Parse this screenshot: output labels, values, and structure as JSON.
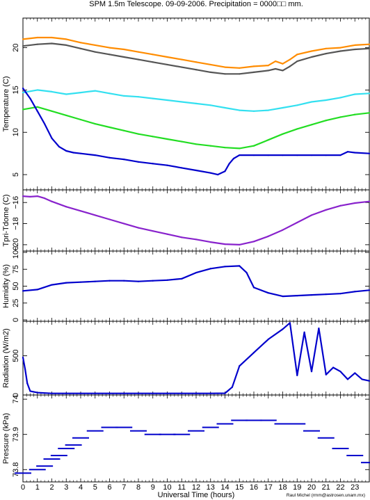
{
  "title": "SPM 1.5m Telescope. 09-09-2006. Precipitation = 0000□□ mm.",
  "xlabel": "Universal Time (hours)",
  "credit": "Raul Michel (rmm@astrosen.unam.mx)",
  "colors": {
    "orange": "#ff8c00",
    "gray": "#555555",
    "cyan": "#33e0f0",
    "green": "#22dd22",
    "blue": "#0000cc",
    "purple": "#8822cc"
  },
  "chart_data": [
    {
      "type": "line",
      "ylabel": "Temperature (C)",
      "ylim": [
        3.2,
        23.5
      ],
      "xlim": [
        0,
        24
      ],
      "yticks": [
        5,
        10,
        15,
        20
      ],
      "series": [
        {
          "color": "orange",
          "x": [
            0,
            1,
            2,
            3,
            4,
            5,
            6,
            7,
            8,
            9,
            10,
            11,
            12,
            13,
            14,
            15,
            16,
            17,
            17.5,
            18,
            18.5,
            19,
            20,
            21,
            22,
            23,
            24
          ],
          "y": [
            21.0,
            21.2,
            21.2,
            21.0,
            20.6,
            20.3,
            20.0,
            19.8,
            19.5,
            19.2,
            18.9,
            18.6,
            18.3,
            18.0,
            17.7,
            17.6,
            17.8,
            17.9,
            18.4,
            18.1,
            18.6,
            19.2,
            19.6,
            19.9,
            20.0,
            20.3,
            20.4
          ]
        },
        {
          "color": "gray",
          "x": [
            0,
            1,
            2,
            3,
            4,
            5,
            6,
            7,
            8,
            9,
            10,
            11,
            12,
            13,
            14,
            15,
            16,
            17,
            17.5,
            18,
            18.5,
            19,
            20,
            21,
            22,
            23,
            24
          ],
          "y": [
            20.2,
            20.4,
            20.5,
            20.3,
            19.9,
            19.5,
            19.2,
            18.9,
            18.6,
            18.3,
            18.0,
            17.7,
            17.4,
            17.1,
            16.9,
            16.9,
            17.1,
            17.3,
            17.5,
            17.3,
            17.8,
            18.4,
            18.9,
            19.3,
            19.6,
            19.8,
            19.9
          ]
        },
        {
          "color": "cyan",
          "x": [
            0,
            1,
            2,
            3,
            4,
            5,
            6,
            7,
            8,
            9,
            10,
            11,
            12,
            13,
            14,
            15,
            16,
            17,
            18,
            19,
            20,
            21,
            22,
            23,
            24
          ],
          "y": [
            14.7,
            15.0,
            14.8,
            14.5,
            14.7,
            14.9,
            14.6,
            14.3,
            14.2,
            14.0,
            13.8,
            13.6,
            13.4,
            13.2,
            12.9,
            12.6,
            12.5,
            12.6,
            12.9,
            13.2,
            13.6,
            13.8,
            14.1,
            14.5,
            14.6
          ]
        },
        {
          "color": "green",
          "x": [
            0,
            1,
            2,
            3,
            4,
            5,
            6,
            7,
            8,
            9,
            10,
            11,
            12,
            13,
            14,
            15,
            16,
            17,
            18,
            19,
            20,
            21,
            22,
            23,
            24
          ],
          "y": [
            12.7,
            13.0,
            12.5,
            12.0,
            11.5,
            11.0,
            10.6,
            10.2,
            9.8,
            9.5,
            9.2,
            8.9,
            8.6,
            8.4,
            8.2,
            8.1,
            8.4,
            9.1,
            9.8,
            10.4,
            10.9,
            11.4,
            11.8,
            12.1,
            12.3
          ]
        },
        {
          "color": "blue",
          "x": [
            0,
            0.5,
            1,
            1.5,
            2,
            2.5,
            3,
            3.5,
            4,
            5,
            6,
            7,
            8,
            9,
            10,
            11,
            12,
            13,
            13.5,
            14,
            14.3,
            14.6,
            15,
            16,
            17,
            18,
            19,
            20,
            21,
            22,
            22.5,
            23,
            24
          ],
          "y": [
            15.2,
            14.0,
            12.5,
            11.0,
            9.3,
            8.3,
            7.8,
            7.6,
            7.5,
            7.3,
            7.0,
            6.8,
            6.5,
            6.3,
            6.1,
            5.8,
            5.5,
            5.2,
            5.0,
            5.4,
            6.3,
            6.9,
            7.3,
            7.3,
            7.3,
            7.3,
            7.3,
            7.3,
            7.3,
            7.3,
            7.7,
            7.6,
            7.5
          ]
        }
      ]
    },
    {
      "type": "line",
      "ylabel": "Tpri-Tdome (C)",
      "ylim": [
        -20.6,
        -14.8
      ],
      "xlim": [
        0,
        24
      ],
      "yticks": [
        -20,
        -18,
        -16
      ],
      "series": [
        {
          "color": "purple",
          "x": [
            0,
            0.5,
            1,
            1.5,
            2,
            3,
            4,
            5,
            6,
            7,
            8,
            9,
            10,
            11,
            12,
            13,
            14,
            15,
            16,
            17,
            18,
            19,
            20,
            21,
            22,
            23,
            24
          ],
          "y": [
            -15.4,
            -15.45,
            -15.4,
            -15.6,
            -15.9,
            -16.4,
            -16.8,
            -17.2,
            -17.6,
            -18.0,
            -18.4,
            -18.7,
            -19.0,
            -19.3,
            -19.5,
            -19.75,
            -19.95,
            -20.0,
            -19.7,
            -19.2,
            -18.6,
            -17.9,
            -17.2,
            -16.7,
            -16.3,
            -16.05,
            -15.9
          ]
        }
      ]
    },
    {
      "type": "line",
      "ylabel": "Humidity (%)",
      "ylim": [
        -2,
        102
      ],
      "xlim": [
        0,
        24
      ],
      "yticks": [
        0,
        25,
        50,
        75,
        100
      ],
      "series": [
        {
          "color": "blue",
          "x": [
            0,
            1,
            2,
            3,
            4,
            5,
            6,
            7,
            8,
            9,
            10,
            11,
            12,
            13,
            14,
            15,
            15.5,
            16,
            17,
            18,
            19,
            20,
            21,
            22,
            23,
            24
          ],
          "y": [
            43,
            45,
            52,
            55,
            56,
            57,
            58,
            58,
            57,
            58,
            59,
            61,
            70,
            76,
            79,
            80,
            70,
            48,
            40,
            35,
            36,
            37,
            38,
            39,
            42,
            44
          ]
        }
      ]
    },
    {
      "type": "line",
      "ylabel": "Radiation (W/m2)",
      "ylim": [
        0,
        940
      ],
      "xlim": [
        0,
        24
      ],
      "yticks": [
        0,
        500
      ],
      "series": [
        {
          "color": "blue",
          "x": [
            0,
            0.15,
            0.3,
            0.5,
            1,
            2,
            3,
            4,
            5,
            6,
            7,
            8,
            9,
            10,
            11,
            12,
            13,
            14,
            14.5,
            15,
            16,
            17,
            18,
            18.5,
            19,
            19.5,
            20,
            20.5,
            21,
            21.5,
            22,
            22.5,
            23,
            23.5,
            24
          ],
          "y": [
            480,
            330,
            150,
            50,
            30,
            20,
            20,
            20,
            20,
            20,
            20,
            20,
            20,
            20,
            20,
            20,
            20,
            22,
            100,
            370,
            540,
            710,
            840,
            920,
            250,
            800,
            300,
            850,
            260,
            350,
            300,
            200,
            280,
            200,
            180
          ]
        }
      ]
    },
    {
      "type": "scatter",
      "ylabel": "Pressure (kPa)",
      "ylim": [
        73.765,
        74.012
      ],
      "xlim": [
        0,
        24
      ],
      "yticks": [
        73.8,
        73.9,
        74
      ],
      "xticks": [
        0,
        1,
        2,
        3,
        4,
        5,
        6,
        7,
        8,
        9,
        10,
        11,
        12,
        13,
        14,
        15,
        16,
        17,
        18,
        19,
        20,
        21,
        22,
        23
      ],
      "series": [
        {
          "color": "blue",
          "x": [
            0,
            1,
            1.5,
            2,
            2.5,
            3,
            3.5,
            4,
            5,
            6,
            7,
            8,
            9,
            10,
            11,
            12,
            13,
            14,
            15,
            16,
            17,
            18,
            19,
            20,
            21,
            22,
            23,
            24
          ],
          "y": [
            73.79,
            73.8,
            73.81,
            73.83,
            73.84,
            73.86,
            73.87,
            73.89,
            73.91,
            73.92,
            73.92,
            73.91,
            73.9,
            73.9,
            73.9,
            73.91,
            73.92,
            73.93,
            73.94,
            73.94,
            73.94,
            73.93,
            73.93,
            73.91,
            73.89,
            73.86,
            73.84,
            73.82
          ]
        }
      ]
    }
  ]
}
